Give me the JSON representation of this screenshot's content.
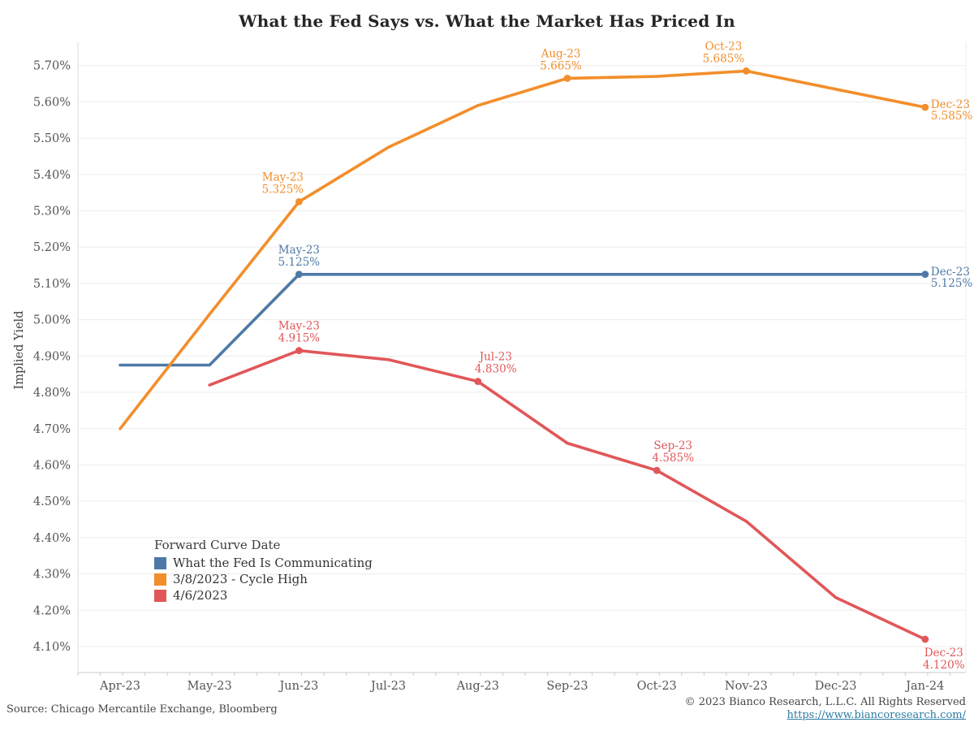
{
  "page": {
    "title": "What the Fed Says vs. What the Market Has Priced In"
  },
  "chart_data": {
    "type": "line",
    "title": "What the Fed Says vs. What the Market Has Priced In",
    "xlabel": "",
    "ylabel": "Implied Yield",
    "ylim": [
      4.1,
      5.7
    ],
    "y_tick_step": 0.1,
    "y_tick_format": "percent-2dp",
    "grid": "horizontal",
    "x_categories": [
      "Apr-23",
      "May-23",
      "Jun-23",
      "Jul-23",
      "Aug-23",
      "Sep-23",
      "Oct-23",
      "Nov-23",
      "Dec-23",
      "Jan-24"
    ],
    "legend": {
      "title": "Forward Curve Date",
      "position": "inside-bottom-left"
    },
    "series": [
      {
        "name": "What the Fed Is Communicating",
        "color": "#4E79A7",
        "points": [
          [
            "Apr-23",
            4.875
          ],
          [
            "May-23",
            4.875
          ],
          [
            "Jun-23",
            5.125
          ],
          [
            "Jul-23",
            5.125
          ],
          [
            "Aug-23",
            5.125
          ],
          [
            "Sep-23",
            5.125
          ],
          [
            "Oct-23",
            5.125
          ],
          [
            "Nov-23",
            5.125
          ],
          [
            "Dec-23",
            5.125
          ],
          [
            "Jan-24",
            5.125
          ]
        ],
        "annotations": [
          {
            "at": "Jun-23",
            "label": "May-23",
            "value": "5.125%",
            "placement": "above",
            "dx": 0
          },
          {
            "at": "Jan-24",
            "label": "Dec-23",
            "value": "5.125%",
            "placement": "right",
            "dx": 0
          }
        ]
      },
      {
        "name": "3/8/2023 - Cycle High",
        "color": "#F28E2B",
        "points": [
          [
            "Apr-23",
            4.7
          ],
          [
            "May-23",
            5.015
          ],
          [
            "Jun-23",
            5.325
          ],
          [
            "Jul-23",
            5.475
          ],
          [
            "Aug-23",
            5.59
          ],
          [
            "Sep-23",
            5.665
          ],
          [
            "Oct-23",
            5.67
          ],
          [
            "Nov-23",
            5.685
          ],
          [
            "Dec-23",
            5.635
          ],
          [
            "Jan-24",
            5.585
          ]
        ],
        "annotations": [
          {
            "at": "Jun-23",
            "label": "May-23",
            "value": "5.325%",
            "placement": "above",
            "dx": -20
          },
          {
            "at": "Sep-23",
            "label": "Aug-23",
            "value": "5.665%",
            "placement": "above",
            "dx": -8
          },
          {
            "at": "Nov-23",
            "label": "Oct-23",
            "value": "5.685%",
            "placement": "above",
            "dx": -28
          },
          {
            "at": "Jan-24",
            "label": "Dec-23",
            "value": "5.585%",
            "placement": "right",
            "dx": 0
          }
        ]
      },
      {
        "name": "4/6/2023",
        "color": "#E15759",
        "points": [
          [
            "May-23",
            4.82
          ],
          [
            "Jun-23",
            4.915
          ],
          [
            "Jul-23",
            4.89
          ],
          [
            "Aug-23",
            4.83
          ],
          [
            "Sep-23",
            4.66
          ],
          [
            "Oct-23",
            4.585
          ],
          [
            "Nov-23",
            4.445
          ],
          [
            "Dec-23",
            4.235
          ],
          [
            "Jan-24",
            4.12
          ]
        ],
        "annotations": [
          {
            "at": "Jun-23",
            "label": "May-23",
            "value": "4.915%",
            "placement": "above",
            "dx": 0
          },
          {
            "at": "Aug-23",
            "label": "Jul-23",
            "value": "4.830%",
            "placement": "above",
            "dx": 22
          },
          {
            "at": "Oct-23",
            "label": "Sep-23",
            "value": "4.585%",
            "placement": "above",
            "dx": 20
          },
          {
            "at": "Jan-24",
            "label": "Dec-23",
            "value": "4.120%",
            "placement": "below",
            "dx": 0
          }
        ]
      }
    ]
  },
  "footer": {
    "source": "Source: Chicago Mercantile Exchange, Bloomberg",
    "copyright": "© 2023 Bianco Research, L.L.C. All Rights Reserved",
    "url": "https://www.biancoresearch.com/",
    "link_color": "#2D7CA4"
  }
}
